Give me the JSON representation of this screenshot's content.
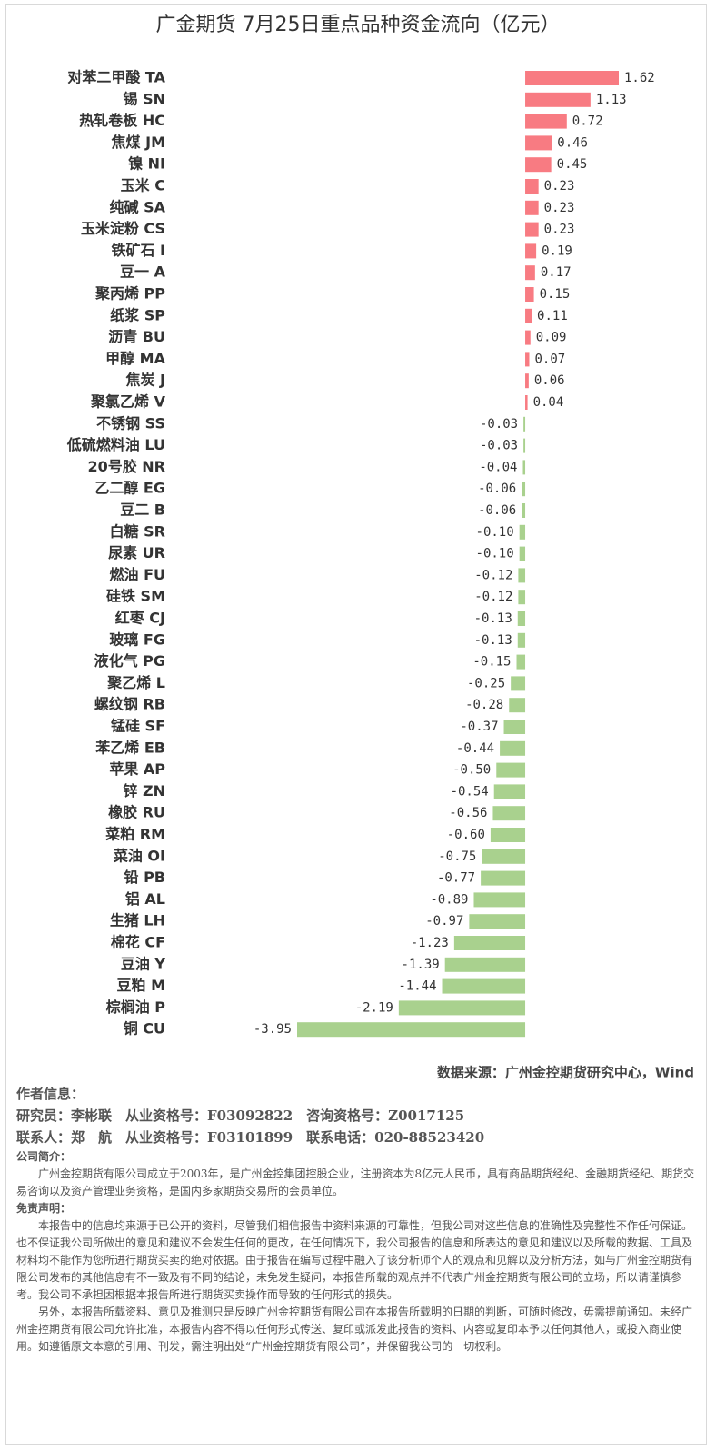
{
  "chart_data": {
    "type": "barh",
    "title": "广金期货 7月25日重点品种资金流向（亿元）",
    "source": "数据来源：广州金控期货研究中心，Wind",
    "categories": [
      "对苯二甲酸 TA",
      "锡 SN",
      "热轧卷板 HC",
      "焦煤 JM",
      "镍 NI",
      "玉米 C",
      "纯碱 SA",
      "玉米淀粉 CS",
      "铁矿石 I",
      "豆一 A",
      "聚丙烯 PP",
      "纸浆 SP",
      "沥青 BU",
      "甲醇 MA",
      "焦炭 J",
      "聚氯乙烯 V",
      "不锈钢 SS",
      "低硫燃料油 LU",
      "20号胶 NR",
      "乙二醇 EG",
      "豆二 B",
      "白糖 SR",
      "尿素 UR",
      "燃油 FU",
      "硅铁 SM",
      "红枣 CJ",
      "玻璃 FG",
      "液化气 PG",
      "聚乙烯 L",
      "螺纹钢 RB",
      "锰硅 SF",
      "苯乙烯 EB",
      "苹果 AP",
      "锌 ZN",
      "橡胶 RU",
      "菜粕 RM",
      "菜油 OI",
      "铅 PB",
      "铝 AL",
      "生猪 LH",
      "棉花 CF",
      "豆油 Y",
      "豆粕 M",
      "棕榈油 P",
      "铜 CU"
    ],
    "values": [
      1.62,
      1.13,
      0.72,
      0.46,
      0.45,
      0.23,
      0.23,
      0.23,
      0.19,
      0.17,
      0.15,
      0.11,
      0.09,
      0.07,
      0.06,
      0.04,
      -0.03,
      -0.03,
      -0.04,
      -0.06,
      -0.06,
      -0.1,
      -0.1,
      -0.12,
      -0.12,
      -0.13,
      -0.13,
      -0.15,
      -0.25,
      -0.28,
      -0.37,
      -0.44,
      -0.5,
      -0.54,
      -0.56,
      -0.6,
      -0.75,
      -0.77,
      -0.89,
      -0.97,
      -1.23,
      -1.39,
      -1.44,
      -2.19,
      -3.95
    ],
    "value_labels": [
      "1.62",
      "1.13",
      "0.72",
      "0.46",
      "0.45",
      "0.23",
      "0.23",
      "0.23",
      "0.19",
      "0.17",
      "0.15",
      "0.11",
      "0.09",
      "0.07",
      "0.06",
      "0.04",
      "-0.03",
      "-0.03",
      "-0.04",
      "-0.06",
      "-0.06",
      "-0.10",
      "-0.10",
      "-0.12",
      "-0.12",
      "-0.13",
      "-0.13",
      "-0.15",
      "-0.25",
      "-0.28",
      "-0.37",
      "-0.44",
      "-0.50",
      "-0.54",
      "-0.56",
      "-0.60",
      "-0.75",
      "-0.77",
      "-0.89",
      "-0.97",
      "-1.23",
      "-1.39",
      "-1.44",
      "-2.19",
      "-3.95"
    ],
    "positive_color": "#f87b82",
    "negative_color": "#a9d18e"
  },
  "footer": {
    "author_heading": "作者信息：",
    "researcher": "研究员：李彬联　从业资格号：F03092822　咨询资格号：Z0017125",
    "contact": "联系人：郑　航　从业资格号：F03101899　联系电话：020-88523420",
    "company_heading": "公司简介：",
    "company": "广州金控期货有限公司成立于2003年，是广州金控集团控股企业，注册资本为8亿元人民币，具有商品期货经纪、金融期货经纪、期货交易咨询以及资产管理业务资格，是国内多家期货交易所的会员单位。",
    "disclaimer_heading": "免责声明：",
    "disclaimer_1": "本报告中的信息均来源于已公开的资料，尽管我们相信报告中资料来源的可靠性，但我公司对这些信息的准确性及完整性不作任何保证。也不保证我公司所做出的意见和建议不会发生任何的更改，在任何情况下，我公司报告的信息和所表达的意见和建议以及所载的数据、工具及材料均不能作为您所进行期货买卖的绝对依据。由于报告在编写过程中融入了该分析师个人的观点和见解以及分析方法，如与广州金控期货有限公司发布的其他信息有不一致及有不同的结论，未免发生疑问，本报告所载的观点并不代表广州金控期货有限公司的立场，所以请谨慎参考。我公司不承担因根据本报告所进行期货买卖操作而导致的任何形式的损失。",
    "disclaimer_2": "另外，本报告所载资料、意见及推测只是反映广州金控期货有限公司在本报告所载明的日期的判断，可随时修改，毋需提前通知。未经广州金控期货有限公司允许批准，本报告内容不得以任何形式传送、复印或派发此报告的资料、内容或复印本予以任何其他人，或投入商业使用。如遵循原文本意的引用、刊发，需注明出处“广州金控期货有限公司”，并保留我公司的一切权利。"
  }
}
